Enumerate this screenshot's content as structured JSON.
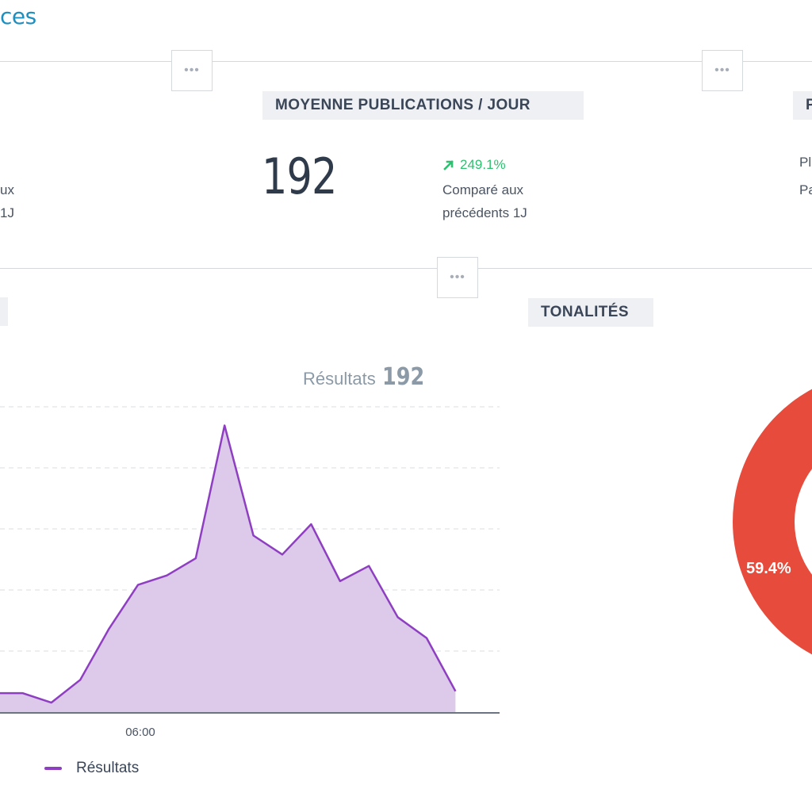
{
  "page": {
    "title": "ces"
  },
  "header_menus": [
    "•••",
    "•••",
    "•••"
  ],
  "cards": {
    "left": {
      "sub_line1": "ux",
      "sub_line2": "1J"
    },
    "avg_posts": {
      "label": "MOYENNE PUBLICATIONS / JOUR",
      "value": "192",
      "delta": "249.1%",
      "compare_line1": "Comparé aux",
      "compare_line2": "précédents 1J",
      "delta_color": "#2fbf71"
    },
    "right": {
      "label_fragment": "P",
      "line1": "Pl",
      "line2": "Pa"
    }
  },
  "tonalites": {
    "label": "TONALITÉS",
    "slice_label": "59.4%",
    "slice_color": "#e64b3c"
  },
  "chart_data": {
    "type": "area",
    "title": "Résultats",
    "total": "192",
    "x_tick_labels": [
      "06:00"
    ],
    "series": [
      {
        "name": "Résultats",
        "color": "#8e3fc1",
        "fill": "#ddc9ea",
        "values": [
          1,
          1,
          0.5,
          1.7,
          4.4,
          6.7,
          7.2,
          8.1,
          15.1,
          9.3,
          8.3,
          9.9,
          6.9,
          7.7,
          5,
          3.9,
          1.1
        ]
      }
    ],
    "ylim": [
      0,
      16
    ],
    "grid": true,
    "legend_position": "bottom-left"
  }
}
